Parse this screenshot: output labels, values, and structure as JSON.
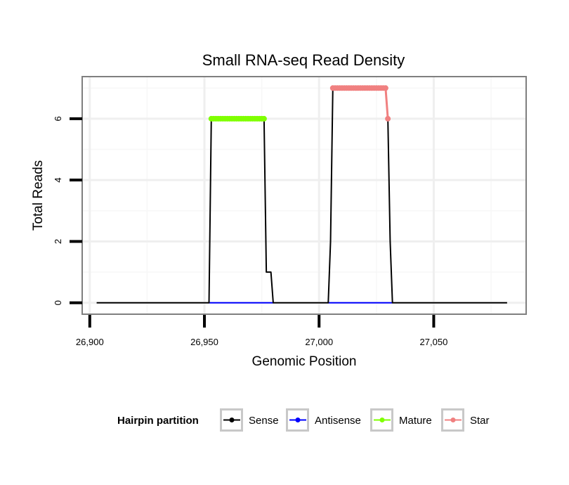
{
  "chart_data": {
    "type": "line",
    "title": "Small RNA-seq Read Density",
    "xlabel": "Genomic Position",
    "ylabel": "Total Reads",
    "xlim": [
      26897,
      27090
    ],
    "ylim": [
      -0.35,
      7.35
    ],
    "x_ticks": [
      26900,
      26950,
      27000,
      27050
    ],
    "x_tick_labels": [
      "26,900",
      "26,950",
      "27,000",
      "27,050"
    ],
    "y_ticks": [
      0,
      2,
      4,
      6
    ],
    "y_tick_labels": [
      "0",
      "2",
      "4",
      "6"
    ],
    "grid": true,
    "legend": {
      "title": "Hairpin partition",
      "position": "bottom",
      "entries": [
        "Sense",
        "Antisense",
        "Mature",
        "Star"
      ]
    },
    "series": [
      {
        "name": "Sense",
        "color": "#000000",
        "marker": false,
        "x": [
          26903,
          26952,
          26953,
          26976,
          26977,
          26979,
          26980,
          27004,
          27005,
          27006,
          27029,
          27030,
          27031,
          27032,
          27082
        ],
        "y": [
          0,
          0,
          6,
          6,
          1,
          1,
          0,
          0,
          2,
          7,
          7,
          6,
          2,
          0,
          0
        ]
      },
      {
        "name": "Antisense",
        "color": "#0000ff",
        "marker": false,
        "x": [
          26952,
          26980,
          27004,
          27032
        ],
        "y": [
          0,
          0,
          0,
          0
        ],
        "segments": [
          [
            0,
            1
          ],
          [
            2,
            3
          ]
        ]
      },
      {
        "name": "Mature",
        "color": "#7fff00",
        "marker": true,
        "x": [
          26953,
          26954,
          26955,
          26956,
          26957,
          26958,
          26959,
          26960,
          26961,
          26962,
          26963,
          26964,
          26965,
          26966,
          26967,
          26968,
          26969,
          26970,
          26971,
          26972,
          26973,
          26974,
          26975,
          26976
        ],
        "y": [
          6,
          6,
          6,
          6,
          6,
          6,
          6,
          6,
          6,
          6,
          6,
          6,
          6,
          6,
          6,
          6,
          6,
          6,
          6,
          6,
          6,
          6,
          6,
          6
        ]
      },
      {
        "name": "Star",
        "color": "#f08080",
        "marker": true,
        "x": [
          27006,
          27007,
          27008,
          27009,
          27010,
          27011,
          27012,
          27013,
          27014,
          27015,
          27016,
          27017,
          27018,
          27019,
          27020,
          27021,
          27022,
          27023,
          27024,
          27025,
          27026,
          27027,
          27028,
          27029,
          27030
        ],
        "y": [
          7,
          7,
          7,
          7,
          7,
          7,
          7,
          7,
          7,
          7,
          7,
          7,
          7,
          7,
          7,
          7,
          7,
          7,
          7,
          7,
          7,
          7,
          7,
          7,
          6
        ]
      }
    ]
  }
}
